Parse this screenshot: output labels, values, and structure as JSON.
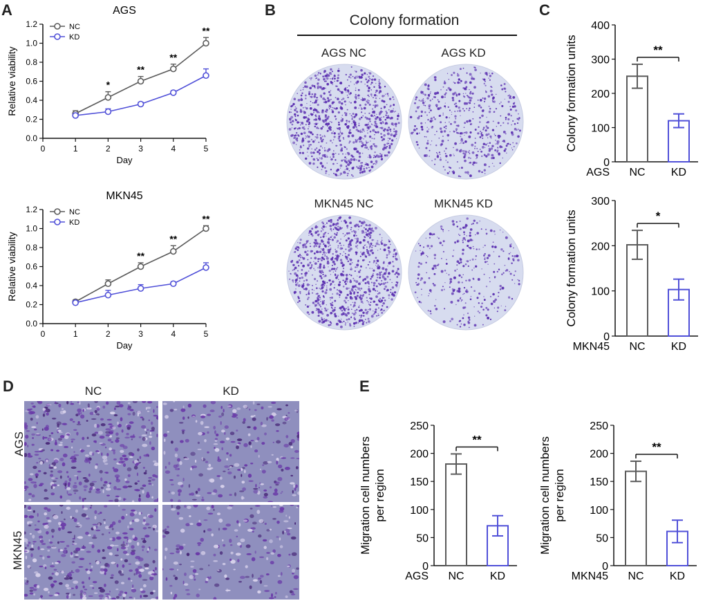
{
  "panels": {
    "a": "A",
    "b": "B",
    "c": "C",
    "d": "D",
    "e": "E"
  },
  "colors": {
    "nc": "#5a5a5a",
    "kd": "#4f4fd8",
    "stain": "#5b2fb0",
    "dish": "#d7dcef",
    "transwell": "#8f8fbe"
  },
  "panel_b": {
    "title": "Colony formation",
    "labels": [
      "AGS NC",
      "AGS KD",
      "MKN45 NC",
      "MKN45 KD"
    ]
  },
  "panel_d": {
    "col_labels": [
      "NC",
      "KD"
    ],
    "row_labels": [
      "AGS",
      "MKN45"
    ]
  },
  "chart_data": [
    {
      "id": "a-ags",
      "type": "line",
      "title": "AGS",
      "xlabel": "Day",
      "ylabel": "Relative viability",
      "xlim": [
        0,
        5
      ],
      "ylim": [
        0,
        1.2
      ],
      "xticks": [
        "0",
        "1",
        "2",
        "3",
        "4",
        "5"
      ],
      "yticks": [
        "0.0",
        "0.2",
        "0.4",
        "0.6",
        "0.8",
        "1.0",
        "1.2"
      ],
      "x": [
        1,
        2,
        3,
        4,
        5
      ],
      "series": [
        {
          "name": "NC",
          "values": [
            0.26,
            0.43,
            0.6,
            0.73,
            1.0
          ],
          "errors": [
            0.03,
            0.06,
            0.05,
            0.05,
            0.06
          ]
        },
        {
          "name": "KD",
          "values": [
            0.24,
            0.28,
            0.36,
            0.48,
            0.66
          ],
          "errors": [
            0.02,
            0.03,
            0.02,
            0.02,
            0.07
          ]
        }
      ],
      "annotations": [
        {
          "x": 2,
          "text": "*"
        },
        {
          "x": 3,
          "text": "**"
        },
        {
          "x": 4,
          "text": "**"
        },
        {
          "x": 5,
          "text": "**"
        }
      ],
      "legend": "top-left"
    },
    {
      "id": "a-mkn45",
      "type": "line",
      "title": "MKN45",
      "xlabel": "Day",
      "ylabel": "Relative viability",
      "xlim": [
        0,
        5
      ],
      "ylim": [
        0,
        1.2
      ],
      "xticks": [
        "0",
        "1",
        "2",
        "3",
        "4",
        "5"
      ],
      "yticks": [
        "0.0",
        "0.2",
        "0.4",
        "0.6",
        "0.8",
        "1.0",
        "1.2"
      ],
      "x": [
        1,
        2,
        3,
        4,
        5
      ],
      "series": [
        {
          "name": "NC",
          "values": [
            0.23,
            0.42,
            0.6,
            0.76,
            1.0
          ],
          "errors": [
            0.02,
            0.04,
            0.04,
            0.06,
            0.03
          ]
        },
        {
          "name": "KD",
          "values": [
            0.22,
            0.3,
            0.37,
            0.42,
            0.59
          ],
          "errors": [
            0.02,
            0.05,
            0.04,
            0.02,
            0.05
          ]
        }
      ],
      "annotations": [
        {
          "x": 3,
          "text": "**"
        },
        {
          "x": 4,
          "text": "**"
        },
        {
          "x": 5,
          "text": "**"
        }
      ],
      "legend": "top-left"
    },
    {
      "id": "c-ags",
      "type": "bar",
      "ylabel": "Colony formation units",
      "group_label": "AGS",
      "categories": [
        "NC",
        "KD"
      ],
      "values": [
        250,
        120
      ],
      "errors": [
        35,
        20
      ],
      "ylim": [
        0,
        400
      ],
      "yticks": [
        "0",
        "100",
        "200",
        "300",
        "400"
      ],
      "significance": "**"
    },
    {
      "id": "c-mkn45",
      "type": "bar",
      "ylabel": "Colony formation units",
      "group_label": "MKN45",
      "categories": [
        "NC",
        "KD"
      ],
      "values": [
        202,
        103
      ],
      "errors": [
        32,
        23
      ],
      "ylim": [
        0,
        300
      ],
      "yticks": [
        "0",
        "100",
        "200",
        "300"
      ],
      "significance": "*"
    },
    {
      "id": "e-ags",
      "type": "bar",
      "ylabel": "Migration cell numbers per region",
      "group_label": "AGS",
      "categories": [
        "NC",
        "KD"
      ],
      "values": [
        181,
        71
      ],
      "errors": [
        18,
        18
      ],
      "ylim": [
        0,
        250
      ],
      "yticks": [
        "0",
        "50",
        "100",
        "150",
        "200",
        "250"
      ],
      "significance": "**"
    },
    {
      "id": "e-mkn45",
      "type": "bar",
      "ylabel": "Migration cell numbers per region",
      "group_label": "MKN45",
      "categories": [
        "NC",
        "KD"
      ],
      "values": [
        168,
        61
      ],
      "errors": [
        18,
        20
      ],
      "ylim": [
        0,
        250
      ],
      "yticks": [
        "0",
        "50",
        "100",
        "150",
        "200",
        "250"
      ],
      "significance": "**"
    }
  ]
}
